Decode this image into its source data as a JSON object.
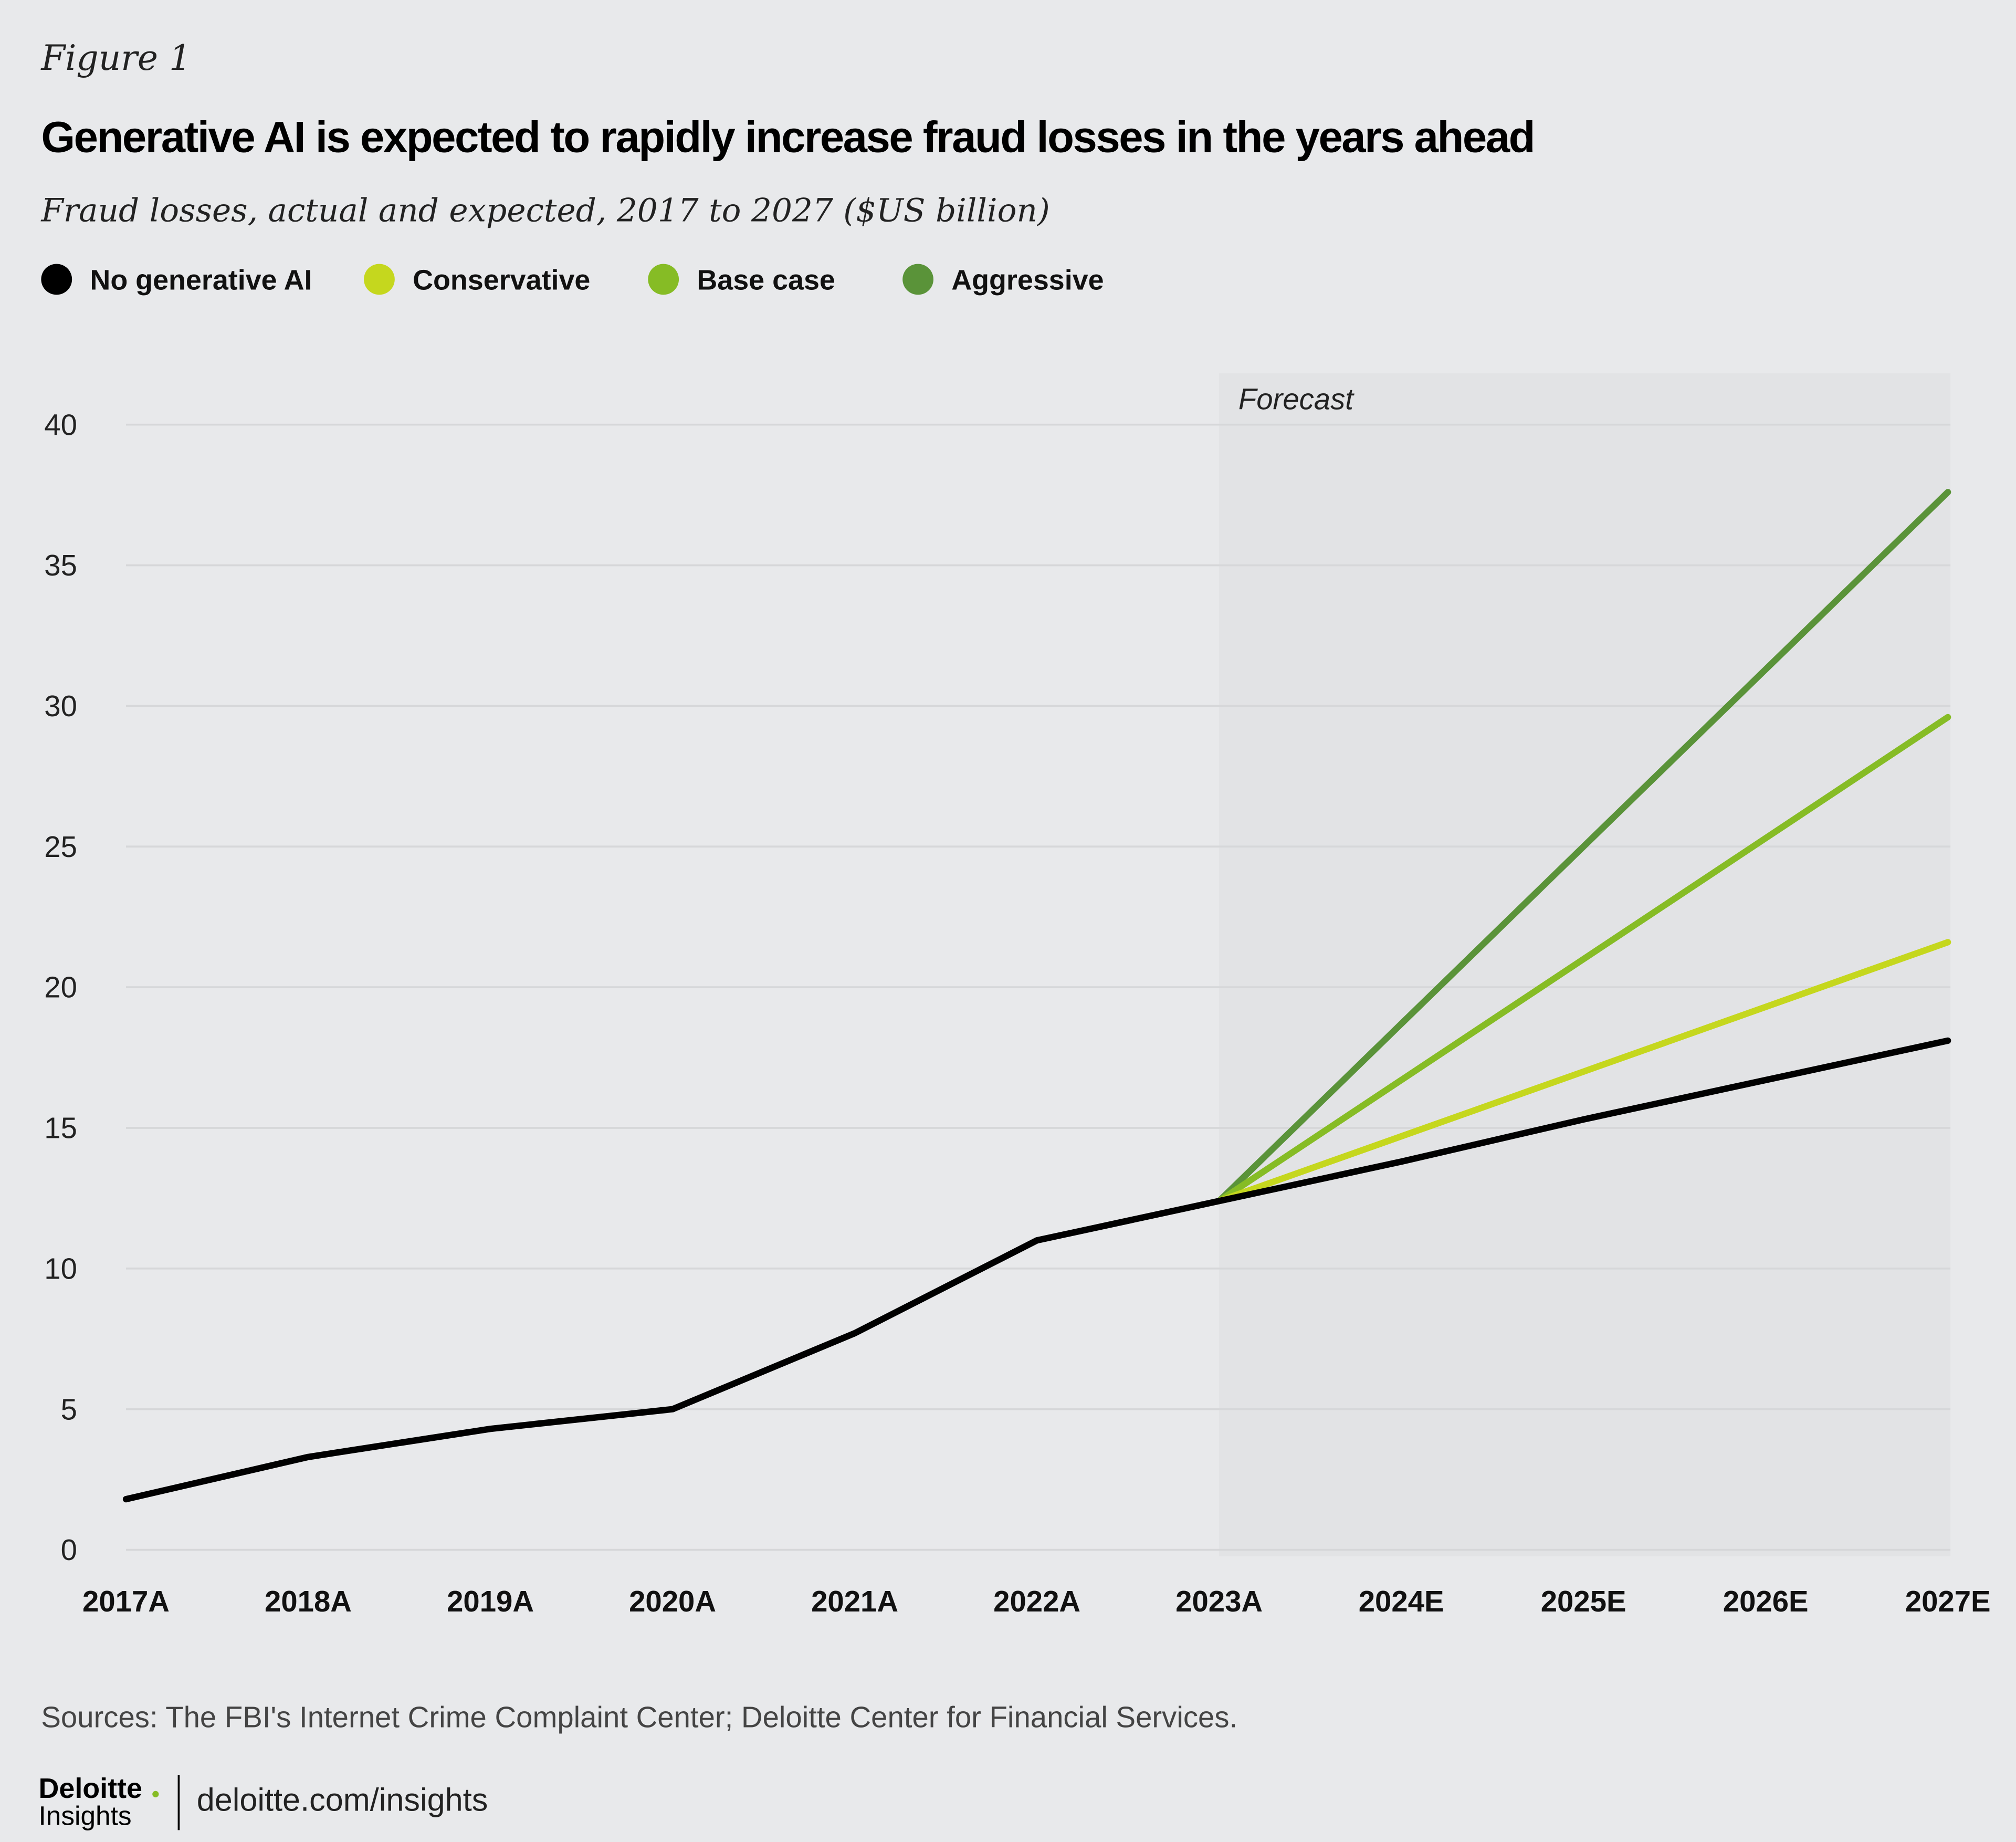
{
  "figure_label": "Figure 1",
  "title": "Generative AI is expected to rapidly increase fraud losses in the years ahead",
  "subtitle": "Fraud losses, actual and expected, 2017 to 2027 ($US billion)",
  "footer": {
    "sources": "Sources: The FBI's Internet Crime Complaint Center; Deloitte Center for Financial Services.",
    "logo_line1": "Deloitte",
    "logo_line2": "Insights",
    "url": "deloitte.com/insights"
  },
  "chart_data": {
    "type": "line",
    "categories": [
      "2017A",
      "2018A",
      "2019A",
      "2020A",
      "2021A",
      "2022A",
      "2023A",
      "2024E",
      "2025E",
      "2026E",
      "2027E"
    ],
    "ylim": [
      0,
      40
    ],
    "yticks": [
      "0",
      "5",
      "10",
      "15",
      "20",
      "25",
      "30",
      "35",
      "40"
    ],
    "grid": true,
    "legend_position": "top-left",
    "annotation": "Forecast",
    "forecast_start": "2023A",
    "series": [
      {
        "name": "No generative AI",
        "color": "#000000",
        "values": [
          1.8,
          3.3,
          4.3,
          5.0,
          7.7,
          11.0,
          12.4,
          13.8,
          15.3,
          16.7,
          18.1
        ]
      },
      {
        "name": "Conservative",
        "color": "#c5d71e",
        "values": [
          null,
          null,
          null,
          null,
          null,
          null,
          12.4,
          14.7,
          17.0,
          19.3,
          21.6
        ]
      },
      {
        "name": "Base case",
        "color": "#86bc25",
        "values": [
          null,
          null,
          null,
          null,
          null,
          null,
          12.4,
          16.7,
          21.0,
          25.3,
          29.6
        ]
      },
      {
        "name": "Aggressive",
        "color": "#5a9339",
        "values": [
          null,
          null,
          null,
          null,
          null,
          null,
          12.4,
          18.7,
          25.0,
          31.3,
          37.6
        ]
      }
    ]
  }
}
